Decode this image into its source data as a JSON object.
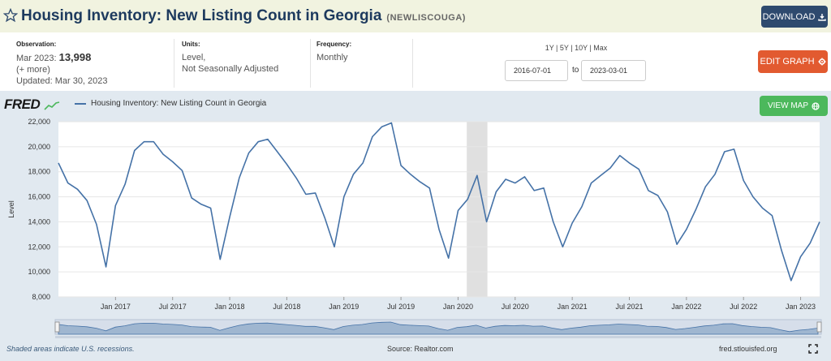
{
  "header": {
    "title": "Housing Inventory: New Listing Count in Georgia",
    "series_id": "(NEWLISCOUGA)",
    "download_label": "DOWNLOAD"
  },
  "meta": {
    "observation_label": "Observation:",
    "observation_date": "Mar 2023:",
    "observation_value": "13,998",
    "more_label": "(+ more)",
    "updated": "Updated: Mar 30, 2023",
    "units_label": "Units:",
    "units_line1": "Level,",
    "units_line2": "Not Seasonally Adjusted",
    "frequency_label": "Frequency:",
    "frequency_value": "Monthly"
  },
  "controls": {
    "range_links": [
      "1Y",
      "5Y",
      "10Y",
      "Max"
    ],
    "start_date": "2016-07-01",
    "to_label": "to",
    "end_date": "2023-03-01",
    "edit_graph_label": "EDIT GRAPH",
    "view_map_label": "VIEW MAP"
  },
  "logo_text": "FRED",
  "footer": {
    "recession_note": "Shaded areas indicate U.S. recessions.",
    "source": "Source: Realtor.com",
    "site": "fred.stlouisfed.org"
  },
  "colors": {
    "line": "#4572a7",
    "recession": "#e0e0e0",
    "grid": "#e6e6e6",
    "download": "#2e4a6e",
    "edit": "#e25a30",
    "view_map": "#4cb85c"
  },
  "icons": {
    "star": "star-icon",
    "download": "download-icon",
    "edit": "gear-icon",
    "map": "globe-icon",
    "fullscreen": "fullscreen-icon"
  },
  "chart_data": {
    "type": "line",
    "title": "",
    "xlabel": "",
    "ylabel": "Level",
    "ylim": [
      8000,
      22000
    ],
    "yticks": [
      8000,
      10000,
      12000,
      14000,
      16000,
      18000,
      20000,
      22000
    ],
    "ytick_labels": [
      "8,000",
      "10,000",
      "12,000",
      "14,000",
      "16,000",
      "18,000",
      "20,000",
      "22,000"
    ],
    "xtick_labels": [
      "Jan 2017",
      "Jul 2017",
      "Jan 2018",
      "Jul 2018",
      "Jan 2019",
      "Jul 2019",
      "Jan 2020",
      "Jul 2020",
      "Jan 2021",
      "Jul 2021",
      "Jan 2022",
      "Jul 2022",
      "Jan 2023"
    ],
    "xtick_months": [
      6,
      12,
      18,
      24,
      30,
      36,
      42,
      48,
      54,
      60,
      66,
      72,
      78
    ],
    "x_start": "2016-07",
    "x_end": "2023-03",
    "recession": {
      "start": "2020-02",
      "end": "2020-04"
    },
    "grid": true,
    "legend": "top-left",
    "series": [
      {
        "name": "Housing Inventory: New Listing Count in Georgia",
        "x": [
          "2016-07",
          "2016-08",
          "2016-09",
          "2016-10",
          "2016-11",
          "2016-12",
          "2017-01",
          "2017-02",
          "2017-03",
          "2017-04",
          "2017-05",
          "2017-06",
          "2017-07",
          "2017-08",
          "2017-09",
          "2017-10",
          "2017-11",
          "2017-12",
          "2018-01",
          "2018-02",
          "2018-03",
          "2018-04",
          "2018-05",
          "2018-06",
          "2018-07",
          "2018-08",
          "2018-09",
          "2018-10",
          "2018-11",
          "2018-12",
          "2019-01",
          "2019-02",
          "2019-03",
          "2019-04",
          "2019-05",
          "2019-06",
          "2019-07",
          "2019-08",
          "2019-09",
          "2019-10",
          "2019-11",
          "2019-12",
          "2020-01",
          "2020-02",
          "2020-03",
          "2020-04",
          "2020-05",
          "2020-06",
          "2020-07",
          "2020-08",
          "2020-09",
          "2020-10",
          "2020-11",
          "2020-12",
          "2021-01",
          "2021-02",
          "2021-03",
          "2021-04",
          "2021-05",
          "2021-06",
          "2021-07",
          "2021-08",
          "2021-09",
          "2021-10",
          "2021-11",
          "2021-12",
          "2022-01",
          "2022-02",
          "2022-03",
          "2022-04",
          "2022-05",
          "2022-06",
          "2022-07",
          "2022-08",
          "2022-09",
          "2022-10",
          "2022-11",
          "2022-12",
          "2023-01",
          "2023-02",
          "2023-03"
        ],
        "values": [
          18700,
          17100,
          16600,
          15700,
          13800,
          10400,
          15300,
          17000,
          19700,
          20400,
          20400,
          19400,
          18800,
          18100,
          15900,
          15400,
          15100,
          11000,
          14400,
          17500,
          19500,
          20400,
          20600,
          19600,
          18600,
          17500,
          16200,
          16300,
          14300,
          12000,
          16000,
          17800,
          18700,
          20800,
          21600,
          21900,
          18500,
          17800,
          17200,
          16700,
          13400,
          11100,
          14900,
          15800,
          17700,
          14000,
          16400,
          17400,
          17100,
          17600,
          16500,
          16700,
          14000,
          12000,
          13900,
          15200,
          17100,
          17700,
          18300,
          19300,
          18700,
          18200,
          16500,
          16100,
          14800,
          12200,
          13400,
          15000,
          16800,
          17800,
          19600,
          19800,
          17300,
          16000,
          15100,
          14500,
          11700,
          9300,
          11200,
          12300,
          13998
        ]
      }
    ]
  }
}
